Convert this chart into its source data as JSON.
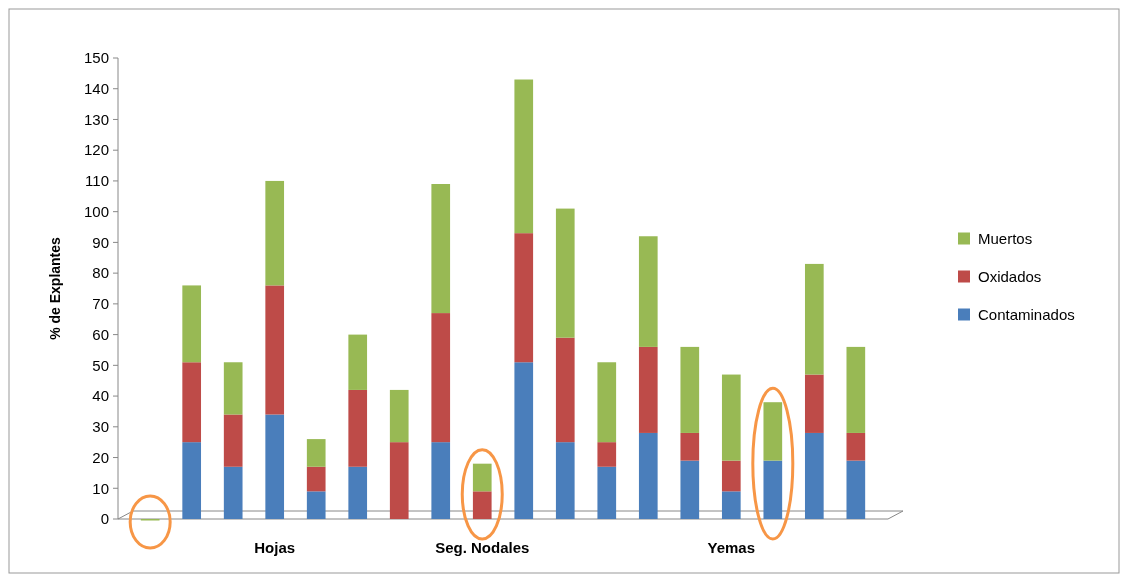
{
  "chart_data": {
    "type": "bar",
    "stacked": true,
    "ylabel": "% de Explantes",
    "categories": [
      null,
      null,
      null,
      "Hojas",
      null,
      null,
      null,
      null,
      "Seg. Nodales",
      null,
      null,
      null,
      null,
      null,
      "Yemas",
      null,
      null,
      null
    ],
    "series": [
      {
        "name": "Contaminados",
        "color": "#4a7ebb",
        "values": [
          0,
          25,
          17,
          34,
          9,
          17,
          0,
          25,
          0,
          51,
          25,
          17,
          28,
          19,
          9,
          19,
          28,
          19
        ]
      },
      {
        "name": "Oxidados",
        "color": "#be4b48",
        "values": [
          0,
          26,
          17,
          42,
          8,
          25,
          25,
          42,
          9,
          42,
          34,
          8,
          28,
          9,
          10,
          0,
          19,
          9
        ]
      },
      {
        "name": "Muertos",
        "color": "#98b954",
        "values": [
          0,
          25,
          17,
          34,
          9,
          18,
          17,
          42,
          9,
          50,
          42,
          26,
          36,
          28,
          28,
          19,
          36,
          28
        ]
      }
    ],
    "ylim": [
      0,
      150
    ],
    "yticks": [
      0,
      10,
      20,
      30,
      40,
      50,
      60,
      70,
      80,
      90,
      100,
      110,
      120,
      130,
      140,
      150
    ],
    "grid": false,
    "legend": "right"
  }
}
